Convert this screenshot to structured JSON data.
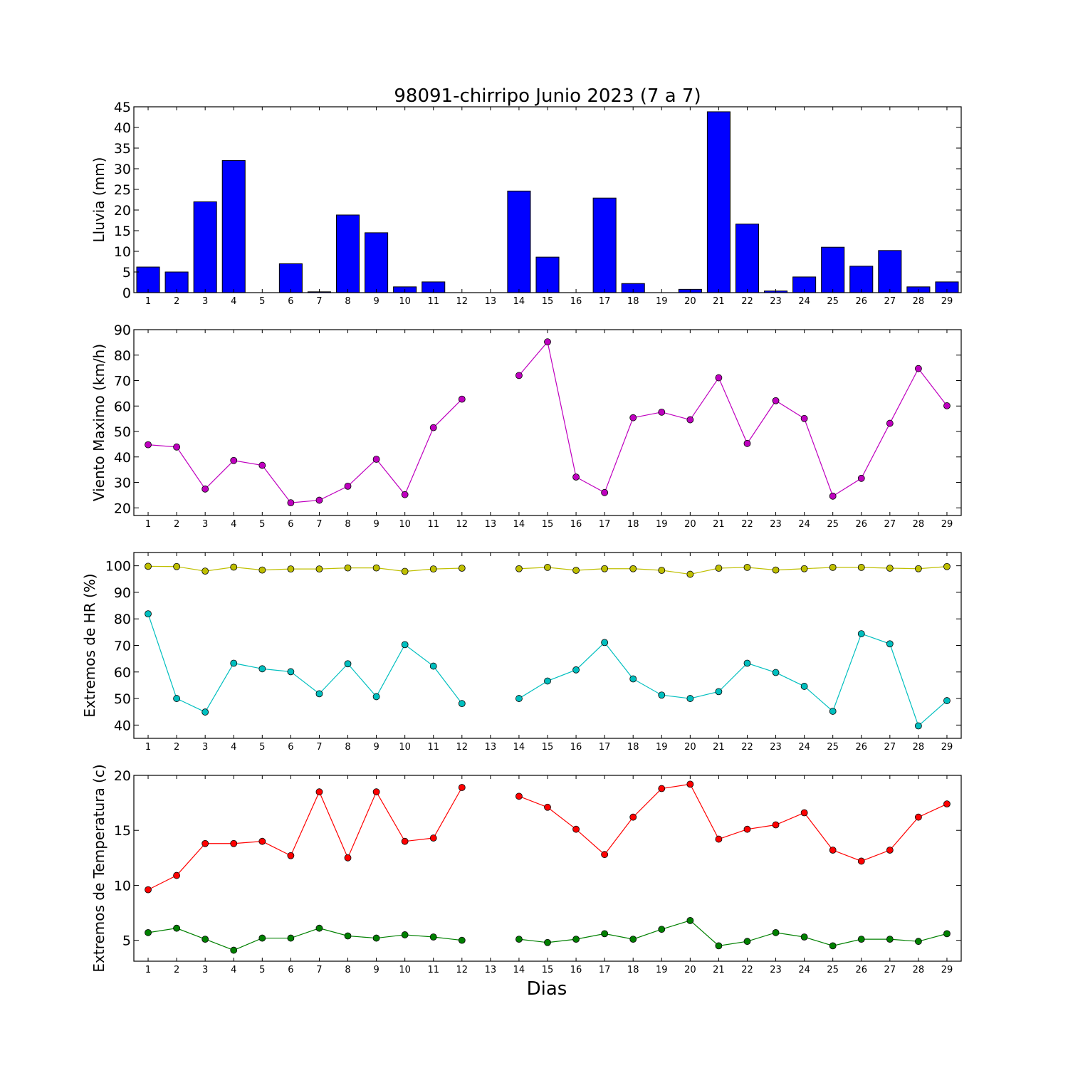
{
  "chart_data": [
    {
      "type": "bar",
      "title": "98091-chirripo Junio 2023  (7 a 7)",
      "ylabel": "Lluvia (mm)",
      "ylim": [
        0,
        45
      ],
      "yticks": [
        0,
        5,
        10,
        15,
        20,
        25,
        30,
        35,
        40,
        45
      ],
      "categories": [
        "1",
        "2",
        "3",
        "4",
        "5",
        "6",
        "7",
        "8",
        "9",
        "10",
        "11",
        "12",
        "13",
        "14",
        "15",
        "16",
        "17",
        "18",
        "19",
        "20",
        "21",
        "22",
        "23",
        "24",
        "25",
        "26",
        "27",
        "28",
        "29"
      ],
      "series": [
        {
          "color": "#0000ff",
          "values": [
            6.2,
            5.0,
            22.0,
            32.0,
            0.0,
            7.0,
            0.2,
            18.8,
            14.5,
            1.4,
            2.6,
            0.0,
            0.0,
            24.6,
            8.6,
            0.0,
            22.9,
            2.2,
            0.0,
            0.8,
            43.8,
            16.6,
            0.4,
            3.8,
            11.0,
            6.4,
            10.2,
            1.4,
            2.6
          ]
        }
      ]
    },
    {
      "type": "line",
      "ylabel": "Viento Maximo (km/h)",
      "ylim": [
        17,
        90
      ],
      "yticks": [
        20,
        30,
        40,
        50,
        60,
        70,
        80,
        90
      ],
      "categories": [
        "1",
        "2",
        "3",
        "4",
        "5",
        "6",
        "7",
        "8",
        "9",
        "10",
        "11",
        "12",
        "13",
        "14",
        "15",
        "16",
        "17",
        "18",
        "19",
        "20",
        "21",
        "22",
        "23",
        "24",
        "25",
        "26",
        "27",
        "28",
        "29"
      ],
      "series": [
        {
          "color": "#bf00bf",
          "values": [
            44.8,
            43.9,
            27.4,
            38.6,
            36.7,
            22.0,
            23.0,
            28.5,
            39.1,
            25.2,
            51.5,
            62.7,
            null,
            72.0,
            85.2,
            32.1,
            26.0,
            55.4,
            57.6,
            54.6,
            71.1,
            45.3,
            62.1,
            55.1,
            24.6,
            31.6,
            53.2,
            74.7,
            60.1
          ]
        }
      ]
    },
    {
      "type": "line",
      "ylabel": "Extremos de HR (%)",
      "ylim": [
        35,
        105
      ],
      "yticks": [
        40,
        50,
        60,
        70,
        80,
        90,
        100
      ],
      "categories": [
        "1",
        "2",
        "3",
        "4",
        "5",
        "6",
        "7",
        "8",
        "9",
        "10",
        "11",
        "12",
        "13",
        "14",
        "15",
        "16",
        "17",
        "18",
        "19",
        "20",
        "21",
        "22",
        "23",
        "24",
        "25",
        "26",
        "27",
        "28",
        "29"
      ],
      "series": [
        {
          "color": "#bfbf00",
          "values": [
            99.8,
            99.7,
            98.0,
            99.5,
            98.4,
            98.8,
            98.8,
            99.2,
            99.2,
            97.9,
            98.8,
            99.1,
            null,
            98.9,
            99.4,
            98.3,
            98.9,
            98.9,
            98.3,
            96.8,
            99.1,
            99.4,
            98.4,
            98.9,
            99.4,
            99.4,
            99.1,
            98.9,
            99.7
          ]
        },
        {
          "color": "#00bfbf",
          "values": [
            81.9,
            50.0,
            44.9,
            63.3,
            61.2,
            60.1,
            51.8,
            63.1,
            50.7,
            70.3,
            62.2,
            48.1,
            null,
            50.0,
            56.6,
            60.8,
            71.1,
            57.4,
            51.3,
            50.0,
            52.6,
            63.3,
            59.8,
            54.6,
            45.2,
            74.4,
            70.6,
            39.7,
            49.2
          ]
        }
      ]
    },
    {
      "type": "line",
      "ylabel": "Extremos de Temperatura (c)",
      "xlabel": "Dias",
      "ylim": [
        3.1,
        20.0
      ],
      "yticks": [
        5,
        10,
        15,
        20
      ],
      "categories": [
        "1",
        "2",
        "3",
        "4",
        "5",
        "6",
        "7",
        "8",
        "9",
        "10",
        "11",
        "12",
        "13",
        "14",
        "15",
        "16",
        "17",
        "18",
        "19",
        "20",
        "21",
        "22",
        "23",
        "24",
        "25",
        "26",
        "27",
        "28",
        "29"
      ],
      "series": [
        {
          "color": "#ff0000",
          "values": [
            9.6,
            10.9,
            13.8,
            13.8,
            14.0,
            12.7,
            18.5,
            12.5,
            18.5,
            14.0,
            14.3,
            18.9,
            null,
            18.1,
            17.1,
            15.1,
            12.8,
            16.2,
            18.8,
            19.2,
            14.2,
            15.1,
            15.5,
            16.6,
            13.2,
            12.2,
            13.2,
            16.2,
            17.4
          ]
        },
        {
          "color": "#008000",
          "values": [
            5.7,
            6.1,
            5.1,
            4.1,
            5.2,
            5.2,
            6.1,
            5.4,
            5.2,
            5.5,
            5.3,
            5.0,
            null,
            5.1,
            4.8,
            5.1,
            5.6,
            5.1,
            6.0,
            6.8,
            4.5,
            4.9,
            5.7,
            5.3,
            4.5,
            5.1,
            5.1,
            4.9,
            5.6
          ]
        }
      ]
    }
  ]
}
